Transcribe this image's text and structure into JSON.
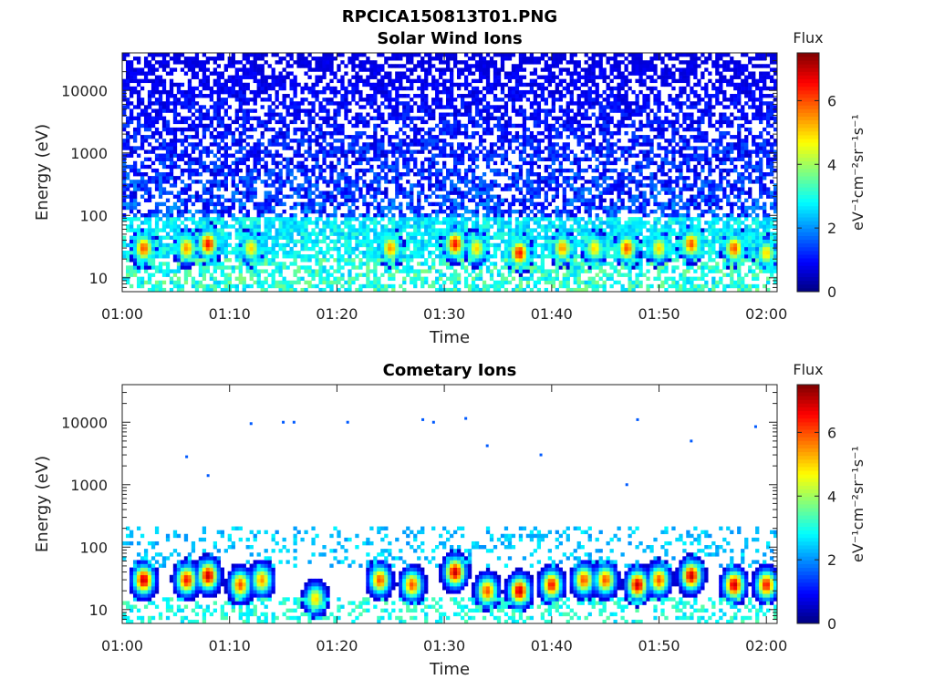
{
  "figure_title": "RPCICA150813T01.PNG",
  "colormap": "jet",
  "chart_data": [
    {
      "type": "heatmap",
      "title": "Solar Wind Ions",
      "xlabel": "Time",
      "ylabel": "Energy (eV)",
      "x_range": [
        "01:00",
        "02:01"
      ],
      "x_ticks": [
        "01:00",
        "01:10",
        "01:20",
        "01:30",
        "01:40",
        "01:50",
        "02:00"
      ],
      "y_scale": "log",
      "ylim": [
        6,
        40000
      ],
      "y_ticks": [
        "10",
        "100",
        "1000",
        "10000"
      ],
      "colorbar": {
        "label": "Flux",
        "unit": "eV⁻¹cm⁻²sr⁻¹s⁻¹",
        "range": [
          0,
          7.5
        ],
        "ticks": [
          "0",
          "2",
          "4",
          "6"
        ]
      },
      "description": "Dense low-level flux (1-2.5) across 100-40000 eV; periodic bursts of 4-7 near 20-60 eV",
      "bursts": [
        {
          "t": "01:02",
          "e": 30,
          "peak": 6.0
        },
        {
          "t": "01:06",
          "e": 30,
          "peak": 5.5
        },
        {
          "t": "01:08",
          "e": 35,
          "peak": 6.5
        },
        {
          "t": "01:12",
          "e": 30,
          "peak": 5.0
        },
        {
          "t": "01:25",
          "e": 30,
          "peak": 5.5
        },
        {
          "t": "01:31",
          "e": 35,
          "peak": 6.5
        },
        {
          "t": "01:33",
          "e": 30,
          "peak": 5.0
        },
        {
          "t": "01:37",
          "e": 25,
          "peak": 6.5
        },
        {
          "t": "01:41",
          "e": 30,
          "peak": 5.5
        },
        {
          "t": "01:44",
          "e": 30,
          "peak": 5.0
        },
        {
          "t": "01:47",
          "e": 30,
          "peak": 6.0
        },
        {
          "t": "01:50",
          "e": 30,
          "peak": 5.0
        },
        {
          "t": "01:53",
          "e": 35,
          "peak": 6.0
        },
        {
          "t": "01:57",
          "e": 30,
          "peak": 6.0
        },
        {
          "t": "02:00",
          "e": 25,
          "peak": 5.0
        }
      ]
    },
    {
      "type": "heatmap",
      "title": "Cometary Ions",
      "xlabel": "Time",
      "ylabel": "Energy (eV)",
      "x_range": [
        "01:00",
        "02:01"
      ],
      "x_ticks": [
        "01:00",
        "01:10",
        "01:20",
        "01:30",
        "01:40",
        "01:50",
        "02:00"
      ],
      "y_scale": "log",
      "ylim": [
        6,
        40000
      ],
      "y_ticks": [
        "10",
        "100",
        "1000",
        "10000"
      ],
      "colorbar": {
        "label": "Flux",
        "unit": "eV⁻¹cm⁻²sr⁻¹s⁻¹",
        "range": [
          0,
          7.5
        ],
        "ticks": [
          "0",
          "2",
          "4",
          "6"
        ]
      },
      "description": "Sparse high-energy points; strong bursts (5-7.5) between 15-80 eV",
      "bursts": [
        {
          "t": "01:02",
          "e": 30,
          "peak": 7.0
        },
        {
          "t": "01:06",
          "e": 30,
          "peak": 6.5
        },
        {
          "t": "01:08",
          "e": 35,
          "peak": 7.0
        },
        {
          "t": "01:11",
          "e": 25,
          "peak": 6.0
        },
        {
          "t": "01:13",
          "e": 30,
          "peak": 5.5
        },
        {
          "t": "01:18",
          "e": 15,
          "peak": 5.0
        },
        {
          "t": "01:24",
          "e": 30,
          "peak": 6.0
        },
        {
          "t": "01:27",
          "e": 25,
          "peak": 6.0
        },
        {
          "t": "01:31",
          "e": 40,
          "peak": 7.0
        },
        {
          "t": "01:34",
          "e": 20,
          "peak": 6.0
        },
        {
          "t": "01:37",
          "e": 20,
          "peak": 7.0
        },
        {
          "t": "01:40",
          "e": 25,
          "peak": 6.5
        },
        {
          "t": "01:43",
          "e": 30,
          "peak": 6.0
        },
        {
          "t": "01:45",
          "e": 30,
          "peak": 6.0
        },
        {
          "t": "01:48",
          "e": 25,
          "peak": 7.0
        },
        {
          "t": "01:50",
          "e": 30,
          "peak": 6.0
        },
        {
          "t": "01:53",
          "e": 35,
          "peak": 7.0
        },
        {
          "t": "01:57",
          "e": 25,
          "peak": 7.0
        },
        {
          "t": "02:00",
          "e": 25,
          "peak": 6.5
        }
      ],
      "sparse_points": [
        {
          "t": "01:12",
          "e": 9500
        },
        {
          "t": "01:15",
          "e": 10000
        },
        {
          "t": "01:16",
          "e": 10000
        },
        {
          "t": "01:21",
          "e": 10000
        },
        {
          "t": "01:28",
          "e": 11000
        },
        {
          "t": "01:29",
          "e": 10000
        },
        {
          "t": "01:32",
          "e": 11500
        },
        {
          "t": "01:48",
          "e": 11000
        },
        {
          "t": "01:59",
          "e": 8500
        },
        {
          "t": "01:06",
          "e": 2800
        },
        {
          "t": "01:08",
          "e": 1400
        },
        {
          "t": "01:34",
          "e": 4200
        },
        {
          "t": "01:39",
          "e": 3000
        },
        {
          "t": "01:47",
          "e": 1000
        },
        {
          "t": "01:53",
          "e": 5000
        }
      ]
    }
  ]
}
